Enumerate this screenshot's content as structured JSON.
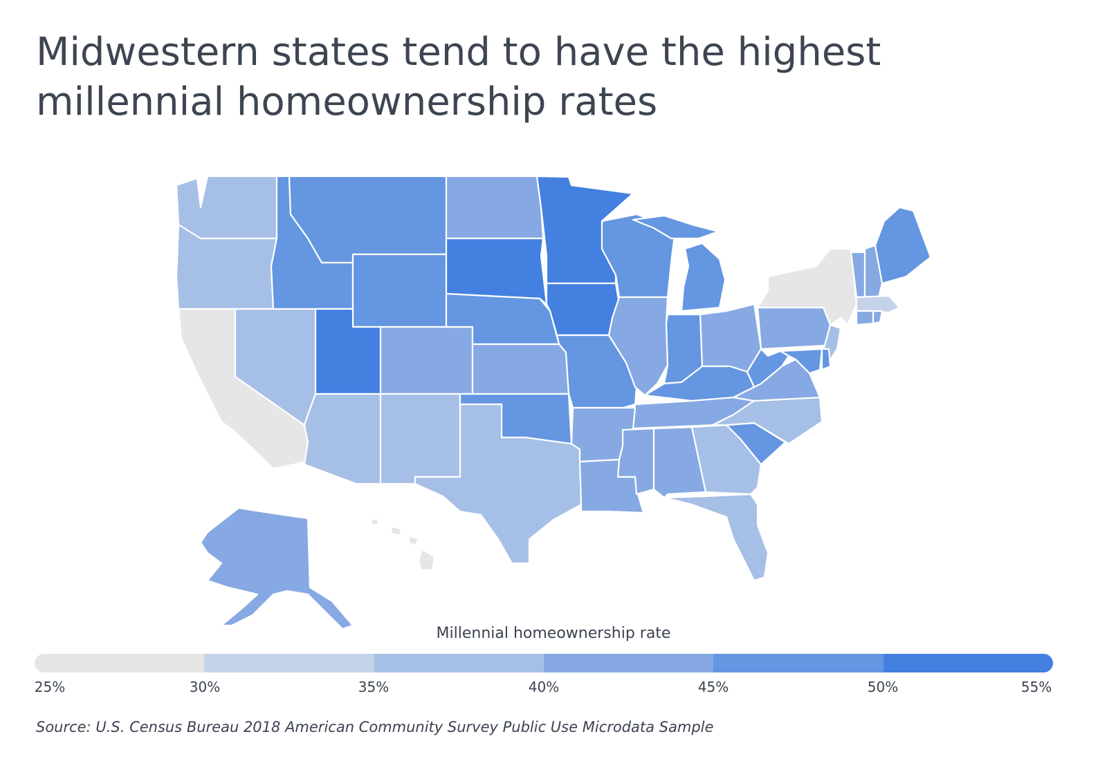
{
  "title": "Midwestern states tend to have the highest millennial homeownership rates",
  "legend": {
    "title": "Millennial homeownership rate",
    "ticks": [
      "25%",
      "30%",
      "35%",
      "40%",
      "45%",
      "50%",
      "55%"
    ],
    "colors": [
      "#e6e6e6",
      "#c5d3ea",
      "#a6bfe6",
      "#86a9e3",
      "#6496e1",
      "#4380e0"
    ]
  },
  "source": "Source: U.S. Census Bureau 2018 American Community Survey Public Use Microdata Sample",
  "colors": {
    "c1": "#e6e6e6",
    "c2": "#c5d3ea",
    "c3": "#a6bfe6",
    "c4": "#86a9e3",
    "c5": "#6496e1",
    "c6": "#4380e0"
  }
}
